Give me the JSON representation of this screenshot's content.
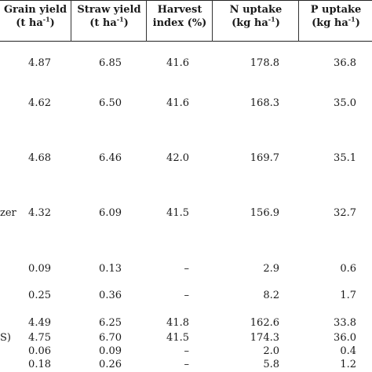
{
  "table": {
    "columns": [
      {
        "line1": "Grain yield",
        "line2_pre": "(t ha",
        "line2_sup": "-1",
        "line2_post": ")"
      },
      {
        "line1": "Straw yield",
        "line2_pre": "(t ha",
        "line2_sup": "-1",
        "line2_post": ")"
      },
      {
        "line1": "Harvest",
        "line2_pre": "index (%)",
        "line2_sup": "",
        "line2_post": ""
      },
      {
        "line1": "N  uptake",
        "line2_pre": "(kg ha",
        "line2_sup": "-1",
        "line2_post": ")"
      },
      {
        "line1": "P  uptake",
        "line2_pre": "(kg ha",
        "line2_sup": "-1",
        "line2_post": ")"
      }
    ],
    "rows": [
      {
        "label": "",
        "values": [
          "4.87",
          "6.85",
          "41.6",
          "178.8",
          "36.8"
        ]
      },
      {
        "label": "",
        "values": [
          "4.62",
          "6.50",
          "41.6",
          "168.3",
          "35.0"
        ]
      },
      {
        "label": "",
        "values": [
          "4.68",
          "6.46",
          "42.0",
          "169.7",
          "35.1"
        ]
      },
      {
        "label": "zer",
        "values": [
          "4.32",
          "6.09",
          "41.5",
          "156.9",
          "32.7"
        ]
      },
      {
        "label": "",
        "values": [
          "0.09",
          "0.13",
          "–",
          "2.9",
          "0.6"
        ]
      },
      {
        "label": "",
        "values": [
          "0.25",
          "0.36",
          "–",
          "8.2",
          "1.7"
        ]
      },
      {
        "label": "",
        "values": [
          "4.49",
          "6.25",
          "41.8",
          "162.6",
          "33.8"
        ]
      },
      {
        "label": "S)",
        "values": [
          "4.75",
          "6.70",
          "41.5",
          "174.3",
          "36.0"
        ]
      },
      {
        "label": "",
        "values": [
          "0.06",
          "0.09",
          "–",
          "2.0",
          "0.4"
        ]
      },
      {
        "label": "",
        "values": [
          "0.18",
          "0.26",
          "–",
          "5.8",
          "1.2"
        ]
      }
    ]
  }
}
